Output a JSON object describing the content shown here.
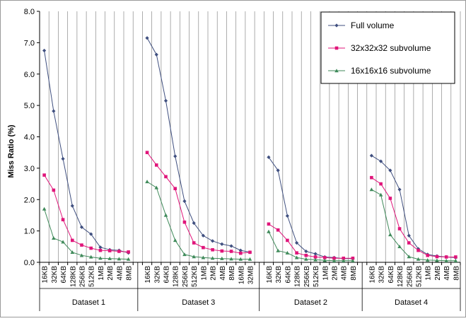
{
  "chart_data": {
    "type": "line",
    "title": "",
    "xlabel": "",
    "ylabel": "Miss Ratio (%)",
    "ylim": [
      0,
      8
    ],
    "yticks": [
      "0.0",
      "1.0",
      "2.0",
      "3.0",
      "4.0",
      "5.0",
      "6.0",
      "7.0",
      "8.0"
    ],
    "grid": "vertical",
    "legend_position": "top-right",
    "groups": [
      {
        "name": "Dataset 1",
        "categories": [
          "16KB",
          "32KB",
          "64KB",
          "128KB",
          "256KB",
          "512KB",
          "1MB",
          "2MB",
          "4MB",
          "8MB"
        ]
      },
      {
        "name": "Dataset 3",
        "categories": [
          "16KB",
          "32KB",
          "64KB",
          "128KB",
          "256KB",
          "512KB",
          "1MB",
          "2MB",
          "4MB",
          "8MB",
          "16MB",
          "32MB"
        ]
      },
      {
        "name": "Dataset 2",
        "categories": [
          "16KB",
          "32KB",
          "64KB",
          "128KB",
          "256KB",
          "512KB",
          "1MB",
          "2MB",
          "4MB",
          "8MB"
        ]
      },
      {
        "name": "Dataset 4",
        "categories": [
          "16KB",
          "32KB",
          "64KB",
          "128KB",
          "256KB",
          "512KB",
          "1MB",
          "2MB",
          "4MB",
          "8MB"
        ]
      }
    ],
    "series": [
      {
        "name": "Full volume",
        "color": "#3f4f7f",
        "marker": "diamond",
        "groups": [
          [
            6.75,
            4.82,
            3.3,
            1.8,
            1.12,
            0.9,
            0.48,
            0.4,
            0.38,
            0.3
          ],
          [
            7.15,
            6.62,
            5.15,
            3.38,
            1.95,
            1.25,
            0.85,
            0.68,
            0.58,
            0.52,
            0.38,
            0.32
          ],
          [
            3.35,
            2.93,
            1.48,
            0.62,
            0.35,
            0.27,
            0.17,
            0.15,
            0.12,
            0.12
          ],
          [
            3.4,
            3.22,
            2.93,
            2.32,
            0.85,
            0.43,
            0.25,
            0.2,
            0.17,
            0.15
          ]
        ]
      },
      {
        "name": "32x32x32 subvolume",
        "color": "#e0157a",
        "marker": "square",
        "groups": [
          [
            2.78,
            2.3,
            1.36,
            0.7,
            0.55,
            0.45,
            0.38,
            0.37,
            0.35,
            0.33
          ],
          [
            3.5,
            3.1,
            2.73,
            2.35,
            1.28,
            0.62,
            0.47,
            0.4,
            0.36,
            0.35,
            0.29,
            0.32
          ],
          [
            1.22,
            1.03,
            0.7,
            0.3,
            0.22,
            0.17,
            0.15,
            0.13,
            0.13,
            0.13
          ],
          [
            2.7,
            2.5,
            2.04,
            1.07,
            0.62,
            0.38,
            0.22,
            0.18,
            0.17,
            0.17
          ]
        ]
      },
      {
        "name": "16x16x16 subvolume",
        "color": "#3f8a5a",
        "marker": "triangle",
        "groups": [
          [
            1.7,
            0.77,
            0.65,
            0.32,
            0.22,
            0.17,
            0.13,
            0.12,
            0.11,
            0.1
          ],
          [
            2.57,
            2.38,
            1.5,
            0.7,
            0.25,
            0.18,
            0.15,
            0.13,
            0.12,
            0.11,
            0.1,
            0.1
          ],
          [
            0.98,
            0.37,
            0.3,
            0.15,
            0.1,
            0.08,
            0.06,
            0.05,
            0.05,
            0.05
          ],
          [
            2.32,
            2.15,
            0.88,
            0.5,
            0.18,
            0.1,
            0.07,
            0.06,
            0.05,
            0.05
          ]
        ]
      }
    ]
  }
}
